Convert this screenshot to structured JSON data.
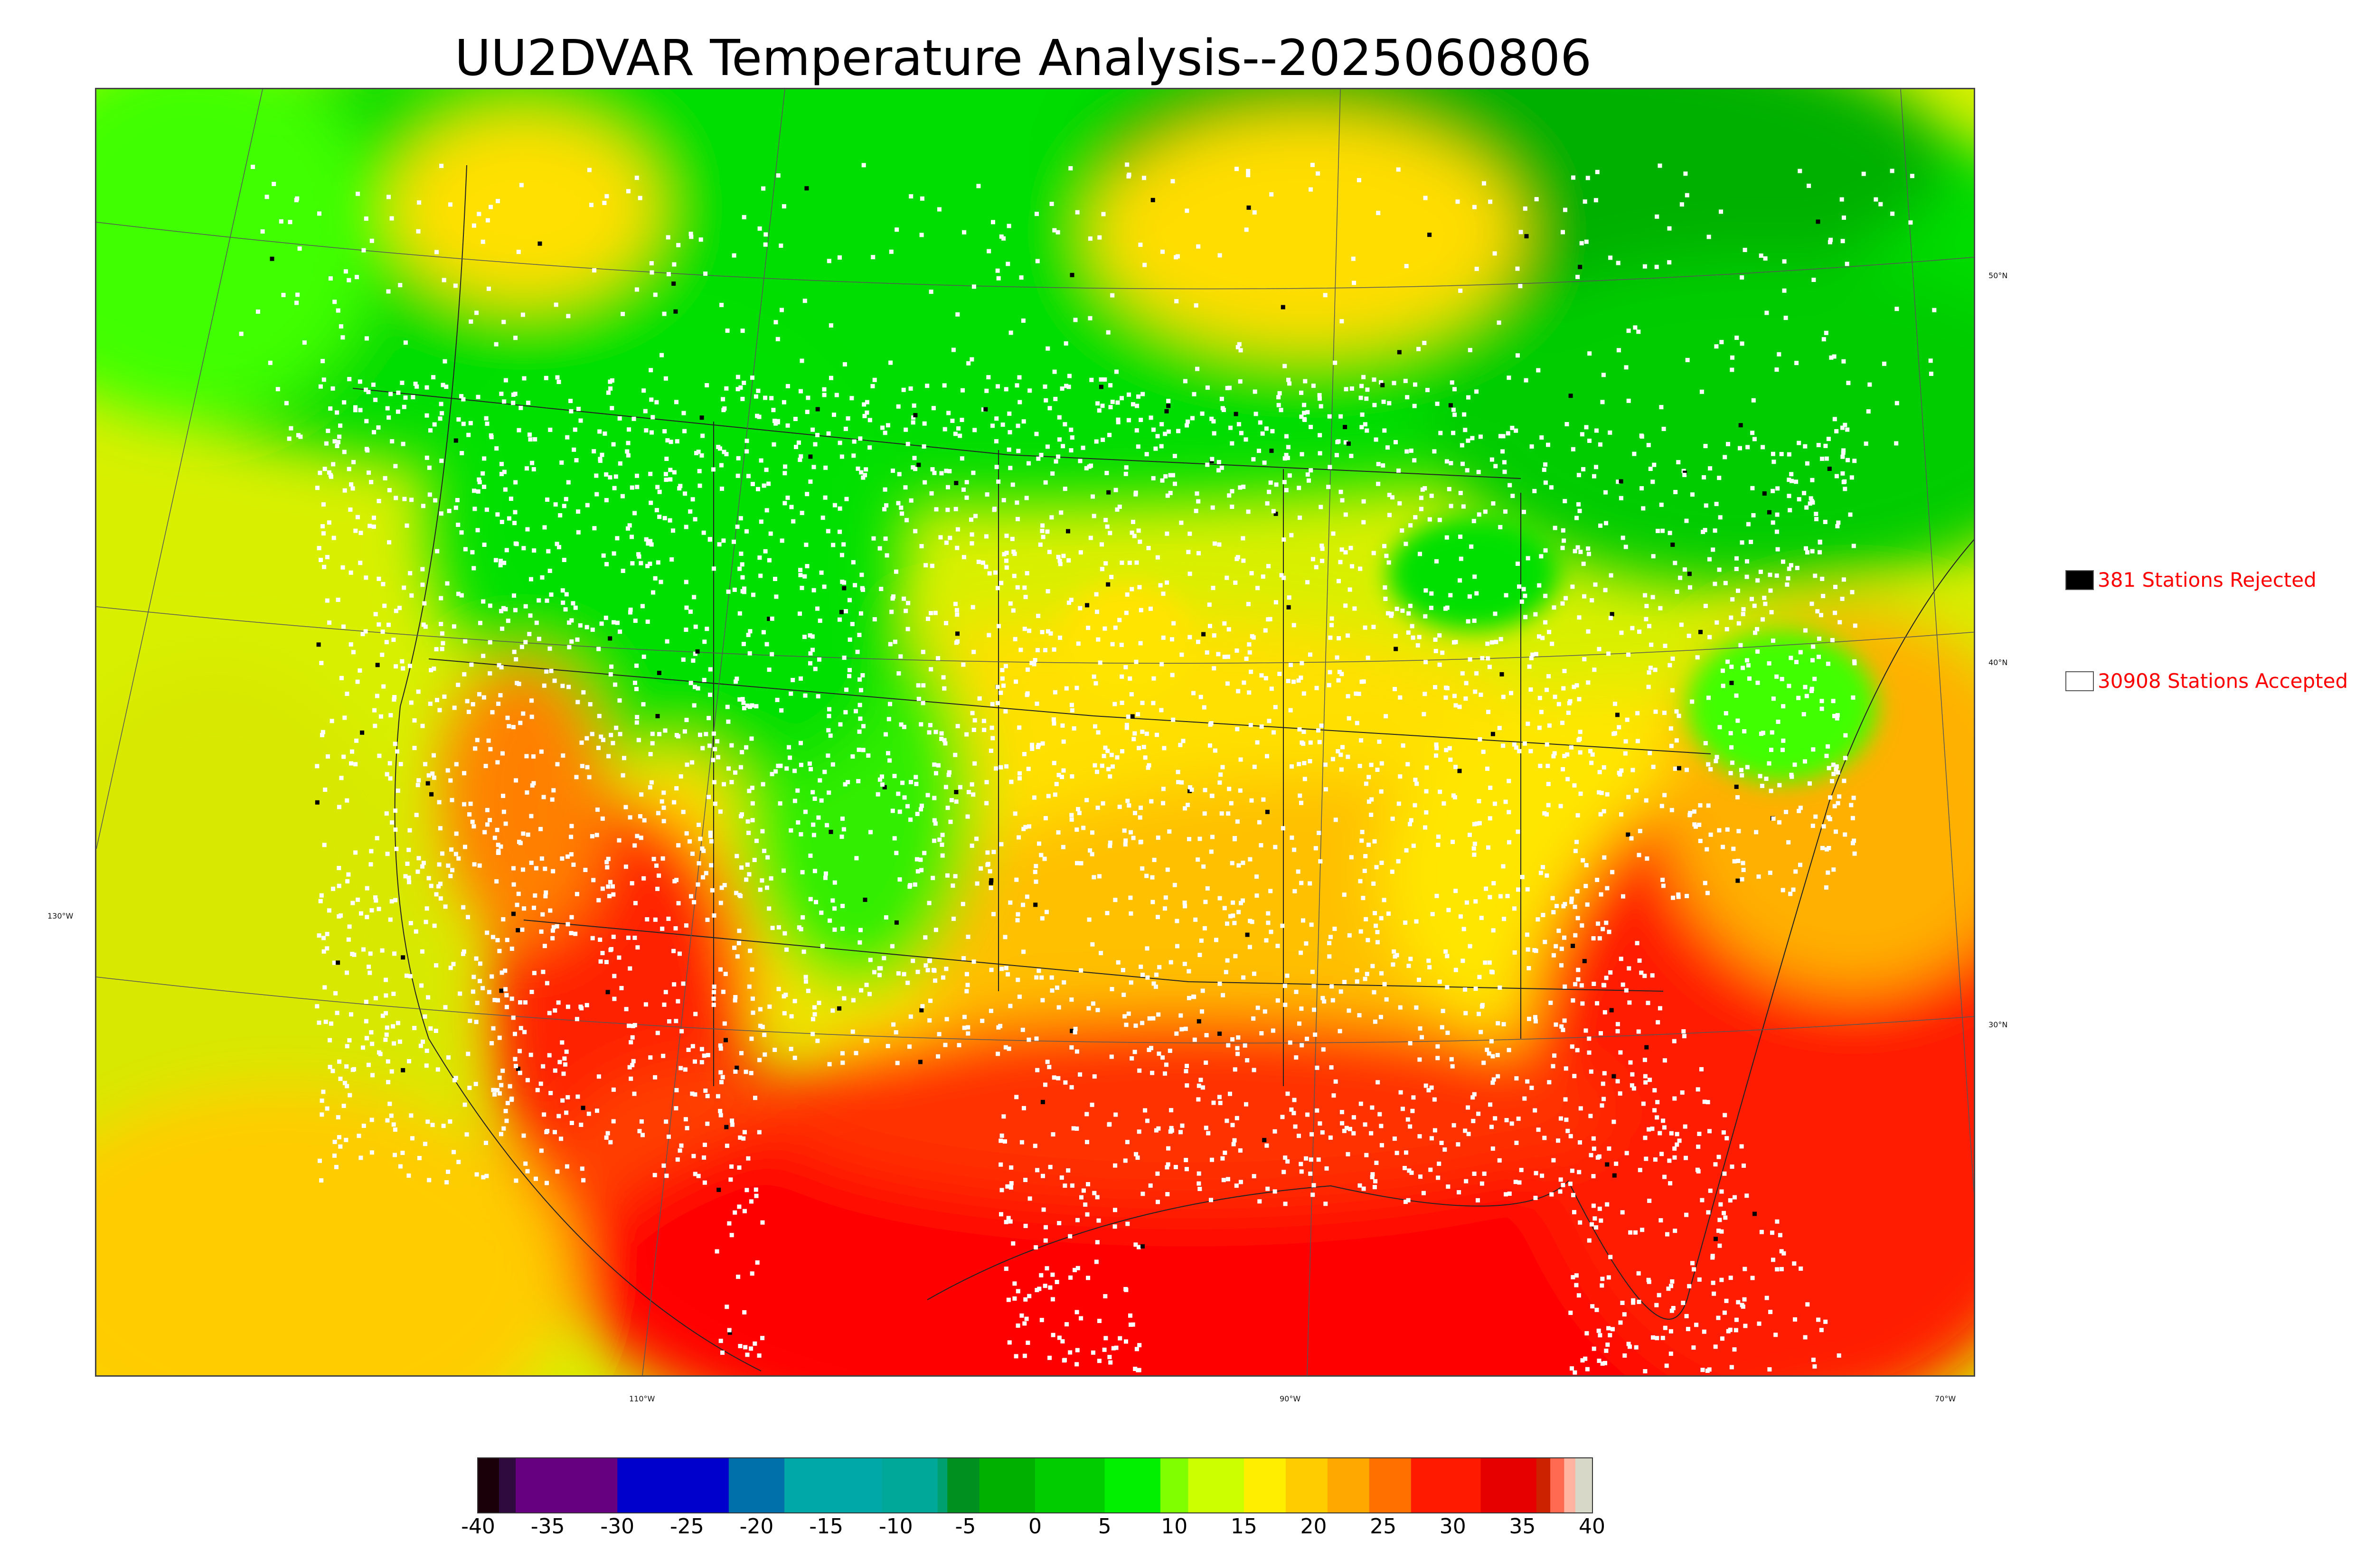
{
  "title": "UU2DVAR Temperature Analysis--2025060806",
  "legend": [
    {
      "label": "381 Stations Rejected",
      "swatch": "#000000"
    },
    {
      "label": "30908 Stations Accepted",
      "swatch": "#ffffff"
    }
  ],
  "longitude_labels": [
    "110°W",
    "90°W",
    "70°W"
  ],
  "left_longitude_label": "130°W",
  "latitude_labels": [
    "50°N",
    "40°N",
    "30°N"
  ],
  "colorbar": {
    "ticks": [
      "-40",
      "-35",
      "-30",
      "-25",
      "-20",
      "-15",
      "-10",
      "-5",
      "0",
      "5",
      "10",
      "15",
      "20",
      "25",
      "30",
      "35",
      "40"
    ],
    "range": [
      -40,
      40
    ],
    "segments": [
      {
        "from": -40,
        "to": -38.5,
        "color": "#1a0008"
      },
      {
        "from": -38.5,
        "to": -37.3,
        "color": "#2e0a3e"
      },
      {
        "from": -37.3,
        "to": -30,
        "color": "#660080"
      },
      {
        "from": -30,
        "to": -22,
        "color": "#0000cc"
      },
      {
        "from": -22,
        "to": -18,
        "color": "#0070aa"
      },
      {
        "from": -18,
        "to": -11,
        "color": "#00a8a8"
      },
      {
        "from": -11,
        "to": -7,
        "color": "#00a89a"
      },
      {
        "from": -7,
        "to": -6.3,
        "color": "#00a070"
      },
      {
        "from": -6.3,
        "to": -4,
        "color": "#009020"
      },
      {
        "from": -4,
        "to": 0,
        "color": "#00b000"
      },
      {
        "from": 0,
        "to": 5,
        "color": "#00cc00"
      },
      {
        "from": 5,
        "to": 9,
        "color": "#00f000"
      },
      {
        "from": 9,
        "to": 11,
        "color": "#80ff00"
      },
      {
        "from": 11,
        "to": 15,
        "color": "#ccff00"
      },
      {
        "from": 15,
        "to": 18,
        "color": "#ffee00"
      },
      {
        "from": 18,
        "to": 21,
        "color": "#ffcc00"
      },
      {
        "from": 21,
        "to": 24,
        "color": "#ffa800"
      },
      {
        "from": 24,
        "to": 27,
        "color": "#ff7000"
      },
      {
        "from": 27,
        "to": 32,
        "color": "#ff1a00"
      },
      {
        "from": 32,
        "to": 36,
        "color": "#e60000"
      },
      {
        "from": 36,
        "to": 37,
        "color": "#cc2200"
      },
      {
        "from": 37,
        "to": 38,
        "color": "#ff6a50"
      },
      {
        "from": 38,
        "to": 38.8,
        "color": "#ffb3a0"
      },
      {
        "from": 38.8,
        "to": 40,
        "color": "#d8d8c8"
      }
    ]
  },
  "colors": {
    "cool": "#00c800",
    "mild": "#d8f000",
    "warm": "#ffcc00",
    "hot": "#ff1a00",
    "accepted_station": "#ffffff",
    "rejected_station": "#000000"
  }
}
